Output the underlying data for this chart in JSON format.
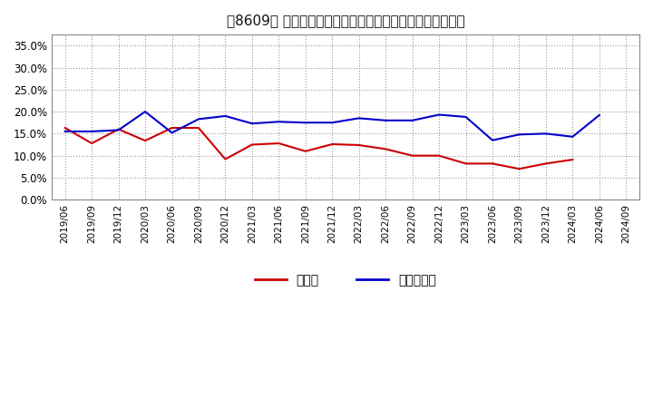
{
  "title": "［8609］ 現頲金、有利子負債の総資産に対する比率の推移",
  "x_labels": [
    "2019/06",
    "2019/09",
    "2019/12",
    "2020/03",
    "2020/06",
    "2020/09",
    "2020/12",
    "2021/03",
    "2021/06",
    "2021/09",
    "2021/12",
    "2022/03",
    "2022/06",
    "2022/09",
    "2022/12",
    "2023/03",
    "2023/06",
    "2023/09",
    "2023/12",
    "2024/03",
    "2024/06",
    "2024/09"
  ],
  "cash": [
    0.163,
    0.128,
    0.16,
    0.134,
    0.163,
    0.163,
    0.092,
    0.125,
    0.128,
    0.11,
    0.126,
    0.124,
    0.115,
    0.1,
    0.1,
    0.082,
    0.082,
    0.07,
    0.082,
    0.091,
    null,
    null
  ],
  "debt": [
    0.155,
    0.155,
    0.158,
    0.2,
    0.152,
    0.183,
    0.19,
    0.173,
    0.177,
    0.175,
    0.175,
    0.185,
    0.18,
    0.18,
    0.193,
    0.188,
    0.135,
    0.148,
    0.15,
    0.143,
    0.192,
    null
  ],
  "cash_color": "#cc0000",
  "debt_color": "#0000cc",
  "bg_color": "#ffffff",
  "plot_bg_color": "#ffffff",
  "grid_color": "#999999",
  "ylim": [
    0.0,
    0.375
  ],
  "yticks": [
    0.0,
    0.05,
    0.1,
    0.15,
    0.2,
    0.25,
    0.3,
    0.35
  ],
  "legend_cash": "現頲金",
  "legend_debt": "有利子負債"
}
